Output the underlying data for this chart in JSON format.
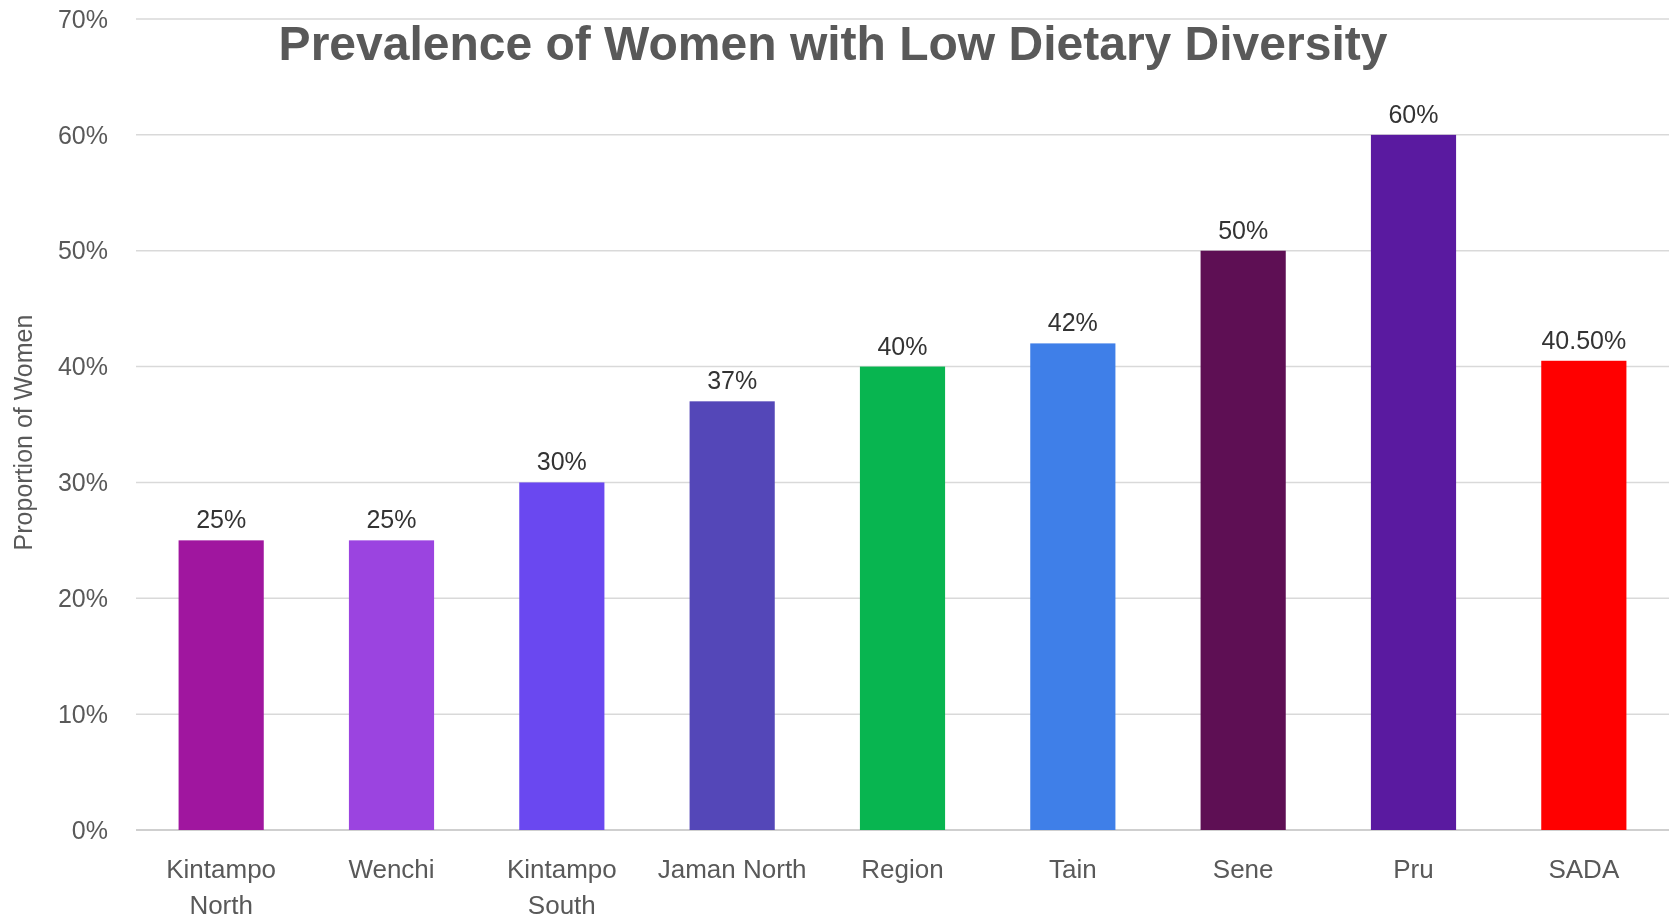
{
  "chart_data": {
    "type": "bar",
    "title": "Prevalence of Women with Low Dietary Diversity",
    "ylabel": "Proportion of Women",
    "categories": [
      "Kintampo North",
      "Wenchi",
      "Kintampo South",
      "Jaman North",
      "Region",
      "Tain",
      "Sene",
      "Pru",
      "SADA"
    ],
    "values": [
      25,
      25,
      30,
      37,
      40,
      42,
      50,
      60,
      40.5
    ],
    "value_labels": [
      "25%",
      "25%",
      "30%",
      "37%",
      "40%",
      "42%",
      "50%",
      "60%",
      "40.50%"
    ],
    "colors": [
      "#a0169f",
      "#9b44e0",
      "#6a48f0",
      "#5447b8",
      "#08b550",
      "#3f7fe8",
      "#5e0f54",
      "#5a1aa0",
      "#ff0000"
    ],
    "ylim": [
      0,
      70
    ],
    "yticks": [
      {
        "value": 0,
        "label": "0%"
      },
      {
        "value": 10,
        "label": "10%"
      },
      {
        "value": 20,
        "label": "20%"
      },
      {
        "value": 30,
        "label": "30%"
      },
      {
        "value": 40,
        "label": "40%"
      },
      {
        "value": 50,
        "label": "50%"
      },
      {
        "value": 60,
        "label": "60%"
      },
      {
        "value": 70,
        "label": "70%"
      }
    ],
    "grid": "y"
  }
}
